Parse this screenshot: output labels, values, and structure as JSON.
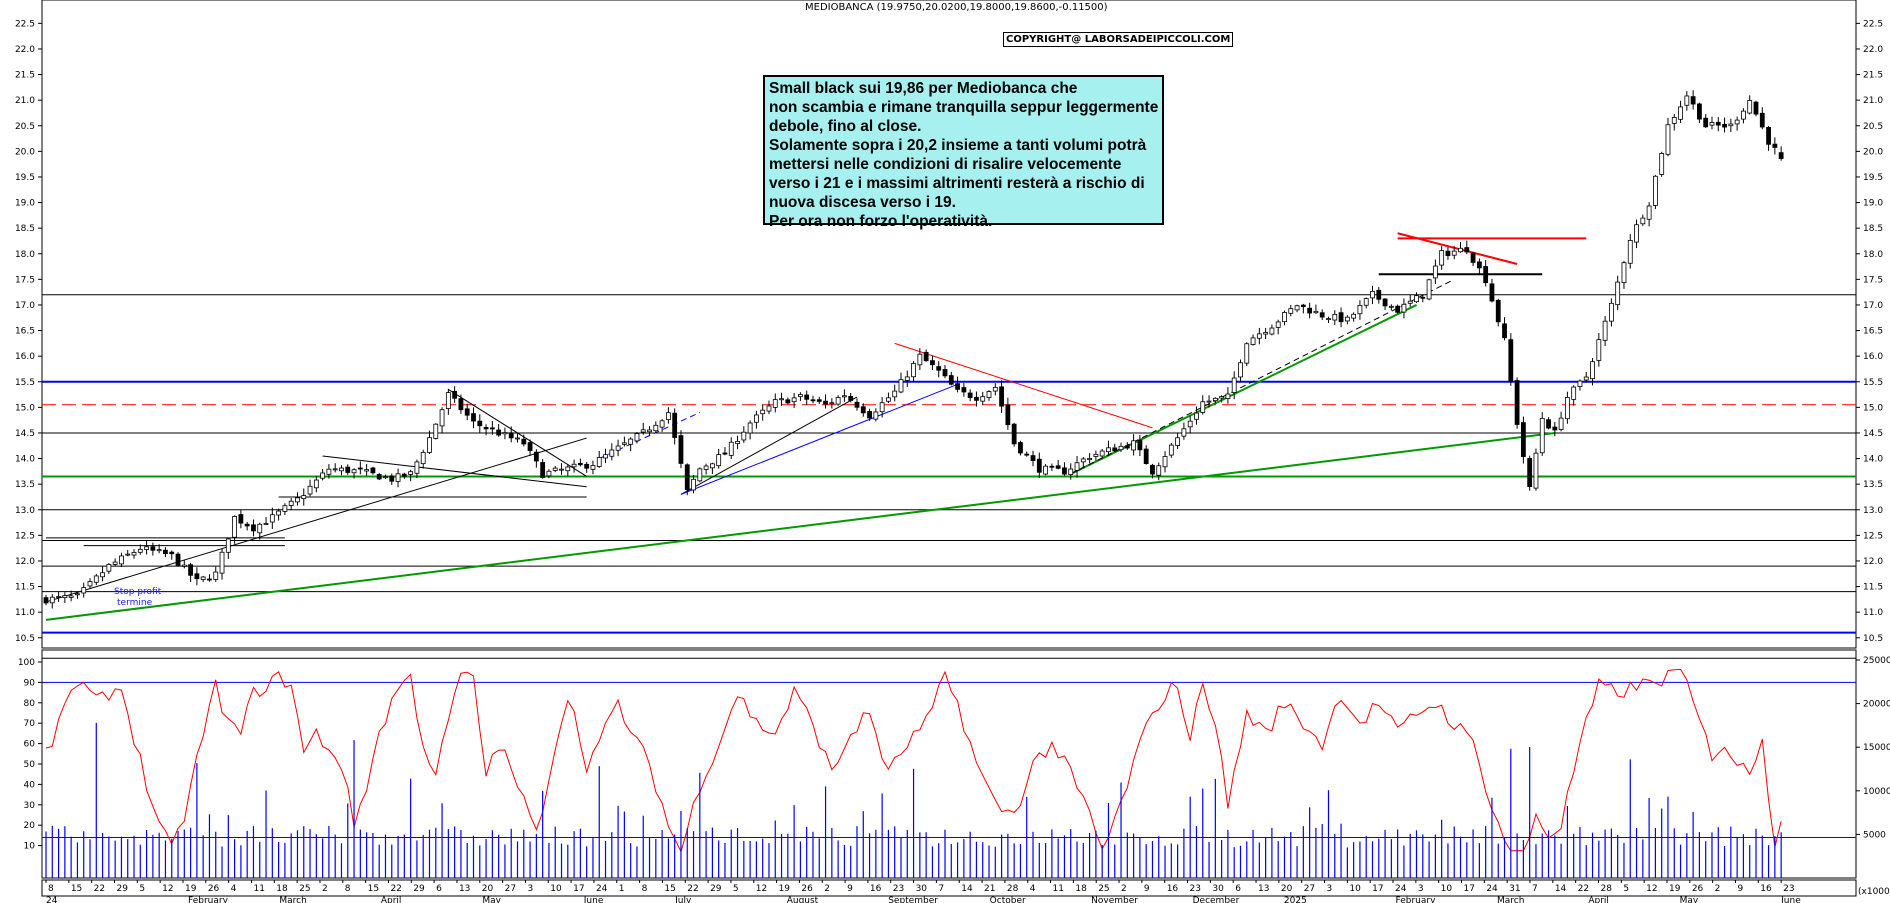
{
  "chart_data": [
    {
      "type": "candlestick",
      "title": "MEDIOBANCA (19.9750,20.0200,19.8000,19.8600,-0.11500)",
      "copyright": "COPYRIGHT@ LABORSADEIPICCOLI.COM",
      "ylim": [
        10.3,
        22.8
      ],
      "y_ticks": [
        "10.5",
        "11.0",
        "11.5",
        "12.0",
        "12.5",
        "13.0",
        "13.5",
        "14.0",
        "14.5",
        "15.0",
        "15.5",
        "16.0",
        "16.5",
        "17.0",
        "17.5",
        "18.0",
        "18.5",
        "19.0",
        "19.5",
        "20.0",
        "20.5",
        "21.0",
        "21.5",
        "22.0",
        "22.5"
      ],
      "x_tick_labels": [
        "8",
        "15",
        "22",
        "29",
        "5",
        "12",
        "19",
        "26",
        "4",
        "11",
        "18",
        "25",
        "2",
        "8",
        "15",
        "22",
        "29",
        "6",
        "13",
        "20",
        "27",
        "3",
        "10",
        "17",
        "24",
        "1",
        "8",
        "15",
        "22",
        "29",
        "5",
        "12",
        "19",
        "26",
        "2",
        "9",
        "16",
        "23",
        "30",
        "7",
        "14",
        "21",
        "28",
        "4",
        "11",
        "18",
        "25",
        "2",
        "9",
        "16",
        "23",
        "30",
        "6",
        "13",
        "20",
        "27",
        "3",
        "10",
        "17",
        "24",
        "3",
        "10",
        "17",
        "24",
        "31",
        "7",
        "14",
        "22",
        "28",
        "5",
        "12",
        "19",
        "26",
        "2",
        "9",
        "16",
        "23"
      ],
      "month_labels": [
        "24",
        "February",
        "March",
        "April",
        "May",
        "June",
        "July",
        "August",
        "September",
        "October",
        "November",
        "December",
        "2025",
        "February",
        "March",
        "April",
        "May",
        "June"
      ],
      "price_anchors": [
        [
          0,
          11.25
        ],
        [
          5,
          11.3
        ],
        [
          10,
          11.9
        ],
        [
          15,
          12.25
        ],
        [
          20,
          12.1
        ],
        [
          24,
          11.6
        ],
        [
          27,
          11.75
        ],
        [
          30,
          12.85
        ],
        [
          33,
          12.65
        ],
        [
          36,
          12.85
        ],
        [
          40,
          13.2
        ],
        [
          45,
          13.8
        ],
        [
          50,
          13.75
        ],
        [
          55,
          13.6
        ],
        [
          58,
          13.7
        ],
        [
          61,
          14.4
        ],
        [
          64,
          15.25
        ],
        [
          68,
          14.7
        ],
        [
          72,
          14.5
        ],
        [
          76,
          14.3
        ],
        [
          79,
          13.7
        ],
        [
          83,
          13.8
        ],
        [
          87,
          13.9
        ],
        [
          91,
          14.2
        ],
        [
          95,
          14.5
        ],
        [
          99,
          14.9
        ],
        [
          102,
          13.35
        ],
        [
          104,
          13.8
        ],
        [
          108,
          14.1
        ],
        [
          112,
          14.7
        ],
        [
          116,
          15.1
        ],
        [
          120,
          15.2
        ],
        [
          124,
          15.05
        ],
        [
          127,
          15.25
        ],
        [
          131,
          14.85
        ],
        [
          135,
          15.3
        ],
        [
          139,
          16.0
        ],
        [
          142,
          15.7
        ],
        [
          145,
          15.3
        ],
        [
          148,
          15.2
        ],
        [
          151,
          15.4
        ],
        [
          154,
          14.3
        ],
        [
          158,
          13.8
        ],
        [
          162,
          13.75
        ],
        [
          166,
          14.05
        ],
        [
          170,
          14.2
        ],
        [
          173,
          14.3
        ],
        [
          176,
          13.75
        ],
        [
          180,
          14.4
        ],
        [
          184,
          15.1
        ],
        [
          188,
          15.2
        ],
        [
          191,
          16.3
        ],
        [
          195,
          16.6
        ],
        [
          199,
          17.0
        ],
        [
          203,
          16.8
        ],
        [
          207,
          16.7
        ],
        [
          211,
          17.2
        ],
        [
          215,
          16.9
        ],
        [
          219,
          17.2
        ],
        [
          222,
          18.0
        ],
        [
          226,
          18.1
        ],
        [
          229,
          17.5
        ],
        [
          232,
          16.3
        ],
        [
          234,
          14.7
        ],
        [
          236,
          13.4
        ],
        [
          238,
          14.8
        ],
        [
          240,
          14.5
        ],
        [
          242,
          15.2
        ],
        [
          245,
          15.6
        ],
        [
          249,
          17.0
        ],
        [
          252,
          18.3
        ],
        [
          255,
          19.0
        ],
        [
          258,
          20.5
        ],
        [
          261,
          21.1
        ],
        [
          264,
          20.5
        ],
        [
          268,
          20.5
        ],
        [
          271,
          21.0
        ],
        [
          274,
          20.2
        ],
        [
          276,
          19.86
        ]
      ],
      "oscillator": {
        "ylim": [
          0,
          100
        ],
        "y_ticks": [
          "10",
          "20",
          "30",
          "40",
          "50",
          "60",
          "70",
          "80",
          "90",
          "100"
        ],
        "color": "#ff0000",
        "anchors": [
          [
            0,
            55
          ],
          [
            2,
            68
          ],
          [
            4,
            88
          ],
          [
            6,
            88
          ],
          [
            8,
            80
          ],
          [
            10,
            85
          ],
          [
            12,
            87
          ],
          [
            16,
            40
          ],
          [
            18,
            20
          ],
          [
            20,
            7
          ],
          [
            22,
            25
          ],
          [
            25,
            65
          ],
          [
            27,
            88
          ],
          [
            29,
            70
          ],
          [
            31,
            65
          ],
          [
            33,
            85
          ],
          [
            37,
            92
          ],
          [
            39,
            90
          ],
          [
            41,
            55
          ],
          [
            43,
            65
          ],
          [
            47,
            50
          ],
          [
            49,
            20
          ],
          [
            51,
            40
          ],
          [
            53,
            65
          ],
          [
            56,
            88
          ],
          [
            58,
            92
          ],
          [
            60,
            60
          ],
          [
            62,
            45
          ],
          [
            64,
            70
          ],
          [
            66,
            95
          ],
          [
            68,
            90
          ],
          [
            70,
            45
          ],
          [
            72,
            60
          ],
          [
            75,
            40
          ],
          [
            78,
            15
          ],
          [
            80,
            45
          ],
          [
            83,
            85
          ],
          [
            86,
            50
          ],
          [
            88,
            60
          ],
          [
            91,
            80
          ],
          [
            93,
            65
          ],
          [
            96,
            50
          ],
          [
            99,
            20
          ],
          [
            101,
            7
          ],
          [
            104,
            40
          ],
          [
            107,
            60
          ],
          [
            110,
            85
          ],
          [
            113,
            70
          ],
          [
            116,
            65
          ],
          [
            119,
            85
          ],
          [
            122,
            70
          ],
          [
            125,
            45
          ],
          [
            128,
            65
          ],
          [
            131,
            75
          ],
          [
            134,
            45
          ],
          [
            137,
            60
          ],
          [
            140,
            70
          ],
          [
            143,
            92
          ],
          [
            145,
            80
          ],
          [
            148,
            50
          ],
          [
            151,
            30
          ],
          [
            154,
            25
          ],
          [
            157,
            50
          ],
          [
            160,
            60
          ],
          [
            163,
            45
          ],
          [
            166,
            25
          ],
          [
            168,
            7
          ],
          [
            171,
            30
          ],
          [
            174,
            60
          ],
          [
            177,
            80
          ],
          [
            180,
            90
          ],
          [
            182,
            60
          ],
          [
            184,
            92
          ],
          [
            186,
            70
          ],
          [
            188,
            30
          ],
          [
            191,
            75
          ],
          [
            194,
            65
          ],
          [
            197,
            80
          ],
          [
            200,
            70
          ],
          [
            203,
            60
          ],
          [
            206,
            85
          ],
          [
            209,
            70
          ],
          [
            212,
            80
          ],
          [
            215,
            65
          ],
          [
            218,
            75
          ],
          [
            221,
            80
          ],
          [
            224,
            70
          ],
          [
            227,
            60
          ],
          [
            229,
            40
          ],
          [
            231,
            20
          ],
          [
            233,
            8
          ],
          [
            235,
            5
          ],
          [
            237,
            25
          ],
          [
            239,
            15
          ],
          [
            241,
            20
          ],
          [
            244,
            60
          ],
          [
            247,
            88
          ],
          [
            250,
            85
          ],
          [
            253,
            88
          ],
          [
            256,
            90
          ],
          [
            259,
            95
          ],
          [
            261,
            90
          ],
          [
            263,
            70
          ],
          [
            265,
            55
          ],
          [
            267,
            60
          ],
          [
            269,
            50
          ],
          [
            271,
            45
          ],
          [
            273,
            65
          ],
          [
            274,
            35
          ],
          [
            275,
            12
          ],
          [
            276,
            20
          ],
          [
            277,
            18
          ]
        ]
      },
      "volume": {
        "ylim": [
          0,
          25000
        ],
        "y_ticks": [
          "5000",
          "10000",
          "15000",
          "20000",
          "25000"
        ],
        "color": "#0000ff",
        "axis_note": "(x1000)"
      },
      "horizontal_levels": [
        {
          "value": 15.5,
          "color": "#0000ff",
          "style": "solid",
          "width": 2
        },
        {
          "value": 10.6,
          "color": "#0000ff",
          "style": "solid",
          "width": 2
        },
        {
          "value": 15.05,
          "color": "#ff0000",
          "style": "dashed",
          "width": 1
        },
        {
          "value": 13.65,
          "color": "#009900",
          "style": "solid",
          "width": 2
        },
        {
          "value": 17.2,
          "color": "#000000",
          "style": "solid",
          "width": 1
        },
        {
          "value": 14.5,
          "color": "#000000",
          "style": "solid",
          "width": 1
        },
        {
          "value": 13.0,
          "color": "#000000",
          "style": "solid",
          "width": 1
        },
        {
          "value": 12.4,
          "color": "#000000",
          "style": "solid",
          "width": 1
        },
        {
          "value": 11.9,
          "color": "#000000",
          "style": "solid",
          "width": 1
        },
        {
          "value": 11.4,
          "color": "#000000",
          "style": "solid",
          "width": 1
        },
        {
          "value": 10.1,
          "color": "#000000",
          "style": "solid",
          "width": 1
        }
      ],
      "trend_lines": [
        {
          "from": [
            0,
            10.85
          ],
          "to": [
            240,
            14.5
          ],
          "color": "#009900",
          "width": 2
        },
        {
          "from": [
            0,
            11.2
          ],
          "to": [
            86,
            14.4
          ],
          "color": "#000000",
          "width": 1
        },
        {
          "from": [
            0,
            12.45
          ],
          "to": [
            38,
            12.45
          ],
          "color": "#000000",
          "width": 1
        },
        {
          "from": [
            6,
            12.3
          ],
          "to": [
            38,
            12.3
          ],
          "color": "#000000",
          "width": 1
        },
        {
          "from": [
            37,
            13.25
          ],
          "to": [
            86,
            13.25
          ],
          "color": "#000000",
          "width": 1
        },
        {
          "from": [
            44,
            14.05
          ],
          "to": [
            86,
            13.45
          ],
          "color": "#000000",
          "width": 1
        },
        {
          "from": [
            64,
            15.35
          ],
          "to": [
            86,
            13.65
          ],
          "color": "#000000",
          "width": 1
        },
        {
          "from": [
            101,
            13.3
          ],
          "to": [
            129,
            15.2
          ],
          "color": "#000000",
          "width": 1
        },
        {
          "from": [
            101,
            13.3
          ],
          "to": [
            145,
            15.45
          ],
          "color": "#0000ff",
          "width": 1
        },
        {
          "from": [
            88,
            14.0
          ],
          "to": [
            104,
            14.9
          ],
          "color": "#0000ff",
          "width": 1,
          "dash": true
        },
        {
          "from": [
            135,
            16.25
          ],
          "to": [
            176,
            14.6
          ],
          "color": "#ff0000",
          "width": 1
        },
        {
          "from": [
            153,
            14.5
          ],
          "to": [
            168,
            14.5
          ],
          "color": "#000000",
          "width": 1
        },
        {
          "from": [
            163,
            13.7
          ],
          "to": [
            218,
            17.0
          ],
          "color": "#009900",
          "width": 2
        },
        {
          "from": [
            163,
            13.7
          ],
          "to": [
            224,
            17.5
          ],
          "color": "#000000",
          "width": 1,
          "dash": true
        },
        {
          "from": [
            215,
            18.4
          ],
          "to": [
            234,
            17.8
          ],
          "color": "#ff0000",
          "width": 2
        },
        {
          "from": [
            215,
            18.3
          ],
          "to": [
            245,
            18.3
          ],
          "color": "#ff0000",
          "width": 2
        },
        {
          "from": [
            212,
            17.6
          ],
          "to": [
            238,
            17.6
          ],
          "color": "#000000",
          "width": 2
        }
      ],
      "annotation_lines": [
        "Small black sui 19,86  per Mediobanca che",
        "non scambia e rimane tranquilla seppur leggermente",
        "debole, fino al close.",
        "Solamente sopra i 20,2 insieme a tanti volumi potrà",
        "mettersi nelle condizioni di risalire velocemente",
        "verso i 21 e i massimi altrimenti resterà a rischio di",
        "nuova discesa verso i 19.",
        "Per ora non forzo l'operatività."
      ],
      "notes": [
        "Stop profit",
        "termine"
      ]
    }
  ]
}
